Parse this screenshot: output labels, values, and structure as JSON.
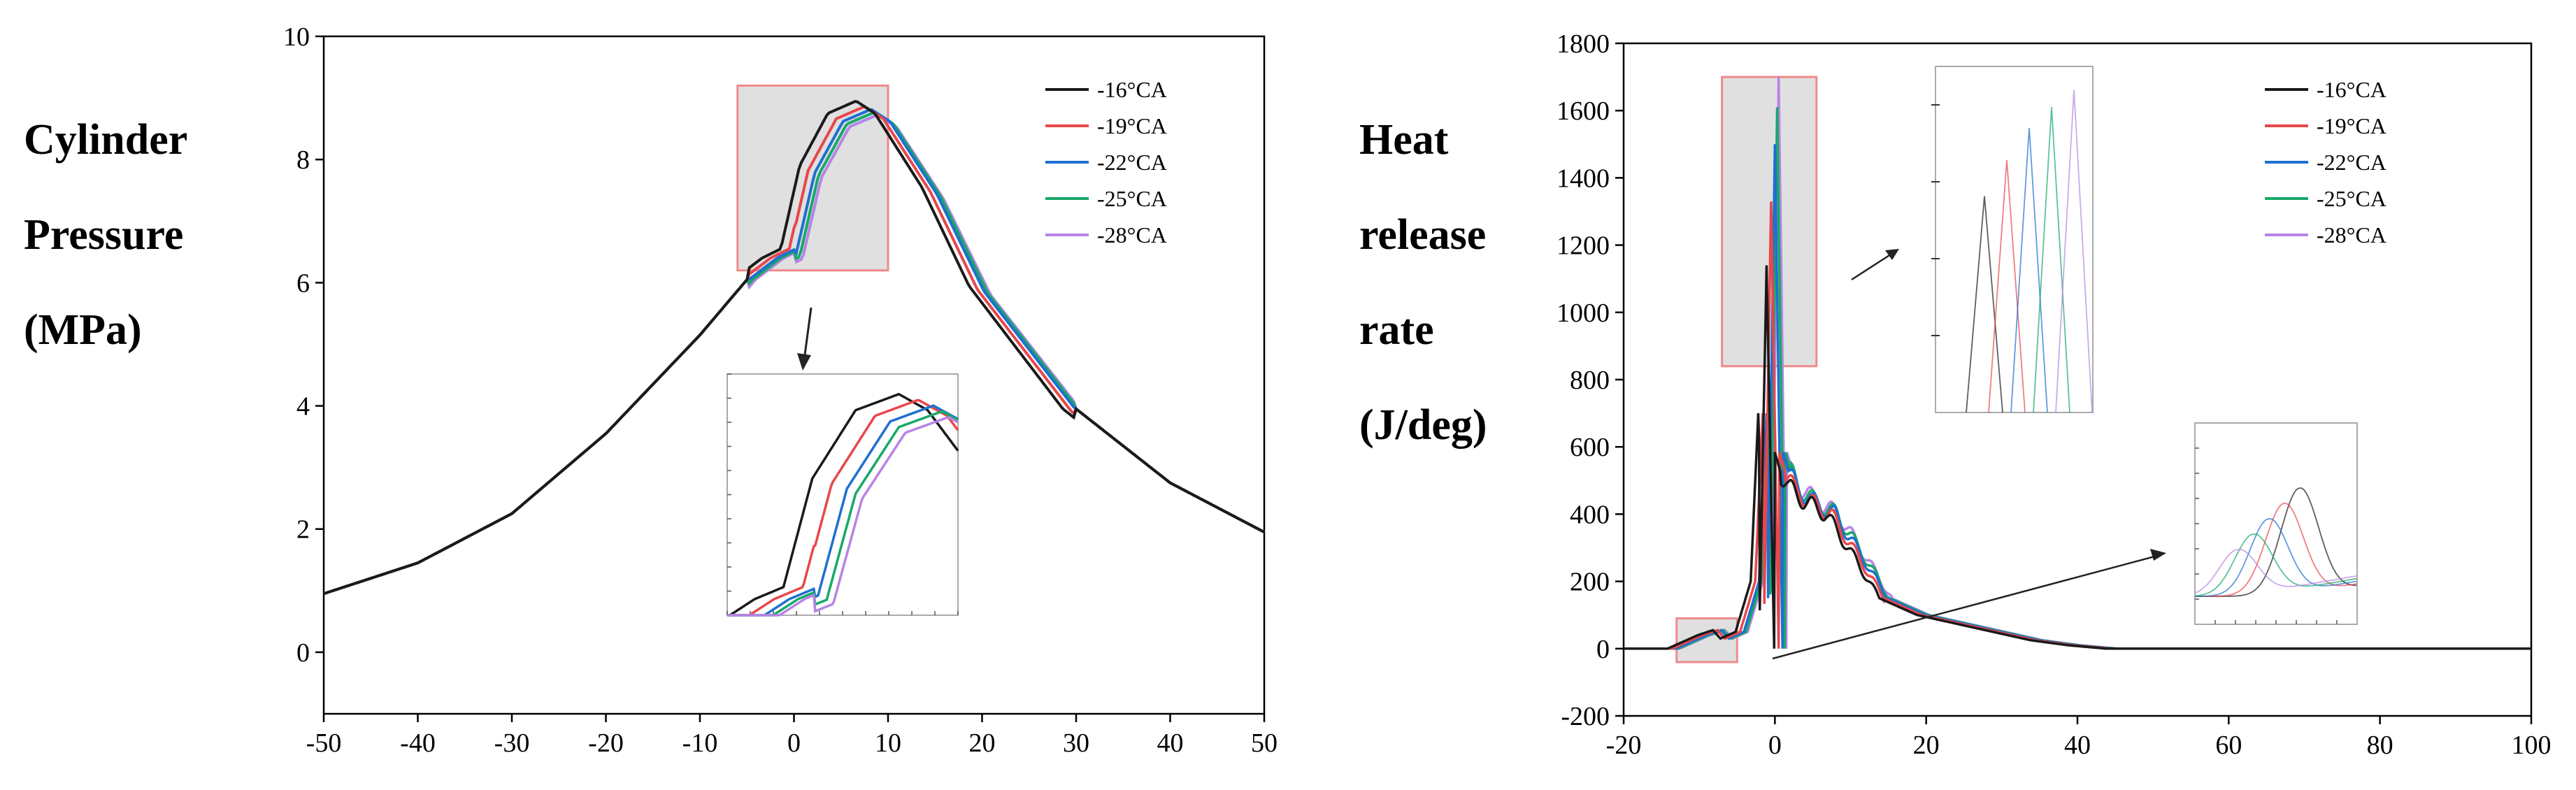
{
  "chart_data": [
    {
      "type": "line",
      "id": "cylinder-pressure",
      "ylabel_lines": [
        "Cylinder",
        "Pressure",
        "(MPa)"
      ],
      "xlabel": "",
      "xlim": [
        -50,
        50
      ],
      "ylim": [
        -1,
        10
      ],
      "xticks": [
        -50,
        -40,
        -30,
        -20,
        -10,
        0,
        10,
        20,
        30,
        40,
        50
      ],
      "yticks": [
        0,
        2,
        4,
        6,
        8,
        10
      ],
      "series": [
        {
          "name": "-16°CA",
          "color": "#1a1a1a",
          "shift": -1.4,
          "scale": 1.0
        },
        {
          "name": "-19°CA",
          "color": "#e8474b",
          "shift": -0.5,
          "scale": 0.99
        },
        {
          "name": "-22°CA",
          "color": "#1f6fd1",
          "shift": 0.2,
          "scale": 0.985
        },
        {
          "name": "-25°CA",
          "color": "#18a868",
          "shift": 0.6,
          "scale": 0.98
        },
        {
          "name": "-28°CA",
          "color": "#b784e6",
          "shift": 0.9,
          "scale": 0.975
        }
      ],
      "curve": {
        "x": [
          -50,
          -40,
          -30,
          -20,
          -10,
          -5,
          -2,
          0,
          2,
          5,
          8,
          10,
          15,
          20,
          30,
          40,
          50
        ],
        "y": [
          0.95,
          1.45,
          2.25,
          3.55,
          5.15,
          6.05,
          6.4,
          6.55,
          7.9,
          8.75,
          8.95,
          8.75,
          7.55,
          5.95,
          3.95,
          2.75,
          1.95
        ]
      },
      "highlight": {
        "x": [
          -6,
          10
        ],
        "y": [
          6.2,
          9.2
        ]
      }
    },
    {
      "type": "line",
      "id": "heat-release-rate",
      "ylabel_lines": [
        "Heat",
        "release",
        "rate",
        "(J/deg)"
      ],
      "xlabel": "",
      "xlim": [
        -20,
        100
      ],
      "ylim": [
        -200,
        1800
      ],
      "xticks": [
        -20,
        0,
        20,
        40,
        60,
        80,
        100
      ],
      "yticks": [
        -200,
        0,
        200,
        400,
        600,
        800,
        1000,
        1200,
        1400,
        1600,
        1800
      ],
      "series": [
        {
          "name": "-16°CA",
          "color": "#1a1a1a",
          "shift": -1.2,
          "peak": 1140
        },
        {
          "name": "-19°CA",
          "color": "#e8474b",
          "shift": -0.6,
          "peak": 1330
        },
        {
          "name": "-22°CA",
          "color": "#1f6fd1",
          "shift": -0.1,
          "peak": 1500
        },
        {
          "name": "-25°CA",
          "color": "#18a868",
          "shift": 0.2,
          "peak": 1610
        },
        {
          "name": "-28°CA",
          "color": "#b784e6",
          "shift": 0.4,
          "peak": 1700
        }
      ],
      "curve": {
        "x": [
          -20,
          -13,
          -11,
          -9,
          -7,
          -6,
          -4,
          -2,
          -1,
          0,
          1,
          2,
          3,
          5,
          8,
          10,
          12,
          15,
          20,
          25,
          30,
          35,
          40,
          45,
          50,
          100
        ],
        "y": [
          0,
          0,
          20,
          40,
          55,
          30,
          50,
          200,
          700,
          1,
          600,
          520,
          480,
          440,
          400,
          330,
          260,
          150,
          100,
          75,
          50,
          25,
          10,
          0,
          0,
          0
        ]
      },
      "highlights": [
        {
          "x": [
            -13,
            -5
          ],
          "y": [
            -40,
            90
          ]
        },
        {
          "x": [
            -7,
            5.5
          ],
          "y": [
            840,
            1700
          ]
        }
      ]
    }
  ]
}
